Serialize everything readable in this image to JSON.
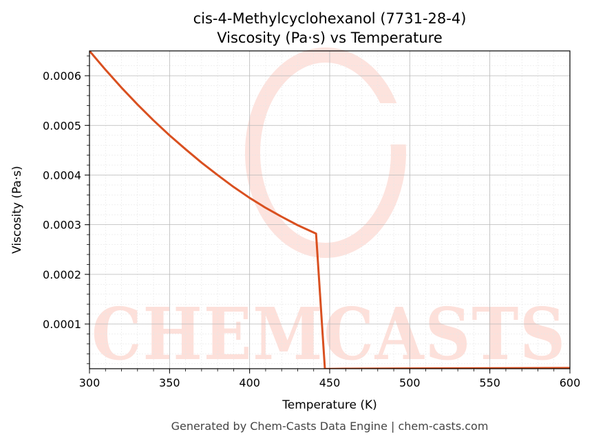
{
  "chart_data": {
    "type": "line",
    "title": "cis-4-Methylcyclohexanol (7731-28-4)",
    "subtitle": "Viscosity (Pa·s) vs Temperature",
    "xlabel": "Temperature (K)",
    "ylabel": "Viscosity (Pa·s)",
    "xlim": [
      300,
      600
    ],
    "ylim": [
      1e-05,
      0.00065
    ],
    "x_ticks": [
      300,
      350,
      400,
      450,
      500,
      550,
      600
    ],
    "y_ticks": [
      0.0001,
      0.0002,
      0.0003,
      0.0004,
      0.0005,
      0.0006
    ],
    "x_tick_labels": [
      "300",
      "350",
      "400",
      "450",
      "500",
      "550",
      "600"
    ],
    "y_tick_labels": [
      "0.0001",
      "0.0002",
      "0.0003",
      "0.0004",
      "0.0005",
      "0.0006"
    ],
    "grid": true,
    "line_color": "#d95020",
    "series": [
      {
        "x": [
          300,
          310,
          320,
          330,
          340,
          350,
          360,
          370,
          380,
          390,
          400,
          410,
          420,
          430,
          441.5,
          447,
          460,
          500,
          550,
          600
        ],
        "y": [
          0.00065,
          0.000612,
          0.000576,
          0.000542,
          0.00051,
          0.00048,
          0.000452,
          0.000425,
          0.0004,
          0.000376,
          0.000354,
          0.000334,
          0.000316,
          0.000299,
          0.000282,
          9.5e-06,
          1e-05,
          1.05e-05,
          1.1e-05,
          1.15e-05
        ]
      }
    ]
  },
  "watermark": {
    "text": "CHEMCASTS",
    "color": "#fde0da"
  },
  "footer": "Generated by Chem-Casts Data Engine | chem-casts.com"
}
